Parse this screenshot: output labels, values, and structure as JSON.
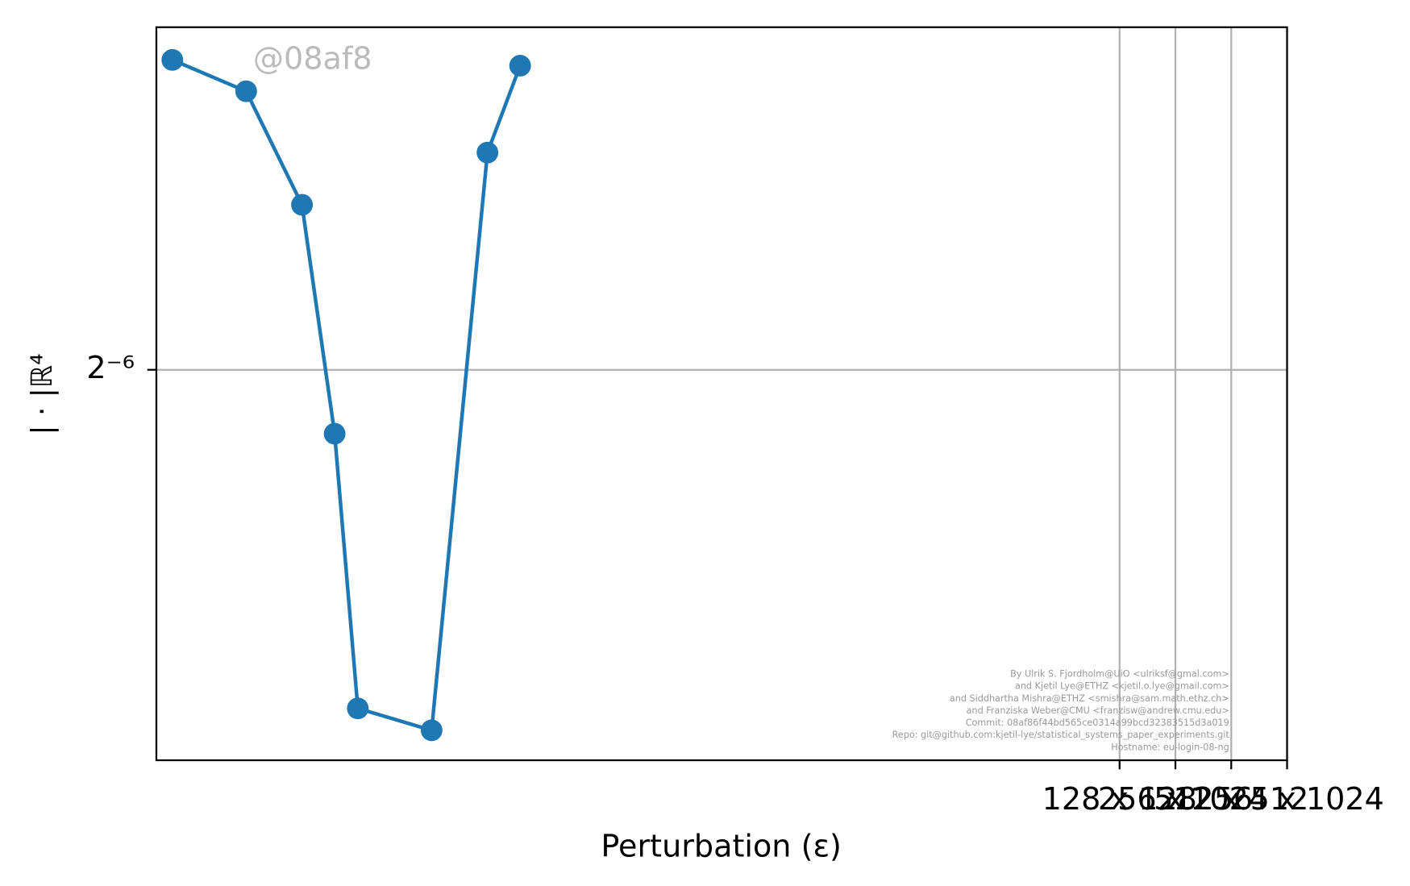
{
  "chart_data": {
    "type": "line",
    "x_label": "Perturbation (ε)",
    "y_label": "| · |ℝ⁴",
    "x": [
      0.001,
      0.0025,
      0.005,
      0.0075,
      0.01,
      0.025,
      0.05,
      0.075
    ],
    "series": [
      {
        "color": "#1f77b4",
        "values": [
          0.02321,
          0.0223,
          0.01929,
          0.0144,
          0.01014,
          0.00986,
          0.02062,
          0.02304
        ]
      }
    ],
    "x_log_base": 2,
    "y_log_base": 2,
    "xlim": [
      0.00082,
      1024
    ],
    "ylim": [
      0.00949,
      0.0242
    ],
    "xticks": [
      {
        "value": 128,
        "label": "128 x 128"
      },
      {
        "value": 256,
        "label": "256 x 256"
      },
      {
        "value": 512,
        "label": "512 x 512"
      },
      {
        "value": 1024,
        "label": "1024 x 1024"
      }
    ],
    "yticks": [
      {
        "value": 0.015625,
        "label": "2⁻⁶"
      }
    ],
    "grid": true,
    "watermark": "@08af8",
    "credits": [
      "By Ulrik S. Fjordholm@UiO <ulriksf@gmal.com>",
      "and Kjetil Lye@ETHZ <kjetil.o.lye@gmail.com>",
      "and Siddhartha Mishra@ETHZ <smishra@sam.math.ethz.ch>",
      "and Franziska Weber@CMU <franzisw@andrew.cmu.edu>",
      "Commit: 08af86f44bd565ce0314a99bcd32383515d3a019",
      "Repo: git@github.com:kjetil-lye/statistical_systems_paper_experiments.git",
      "Hostname: eu-login-08-ng"
    ]
  }
}
